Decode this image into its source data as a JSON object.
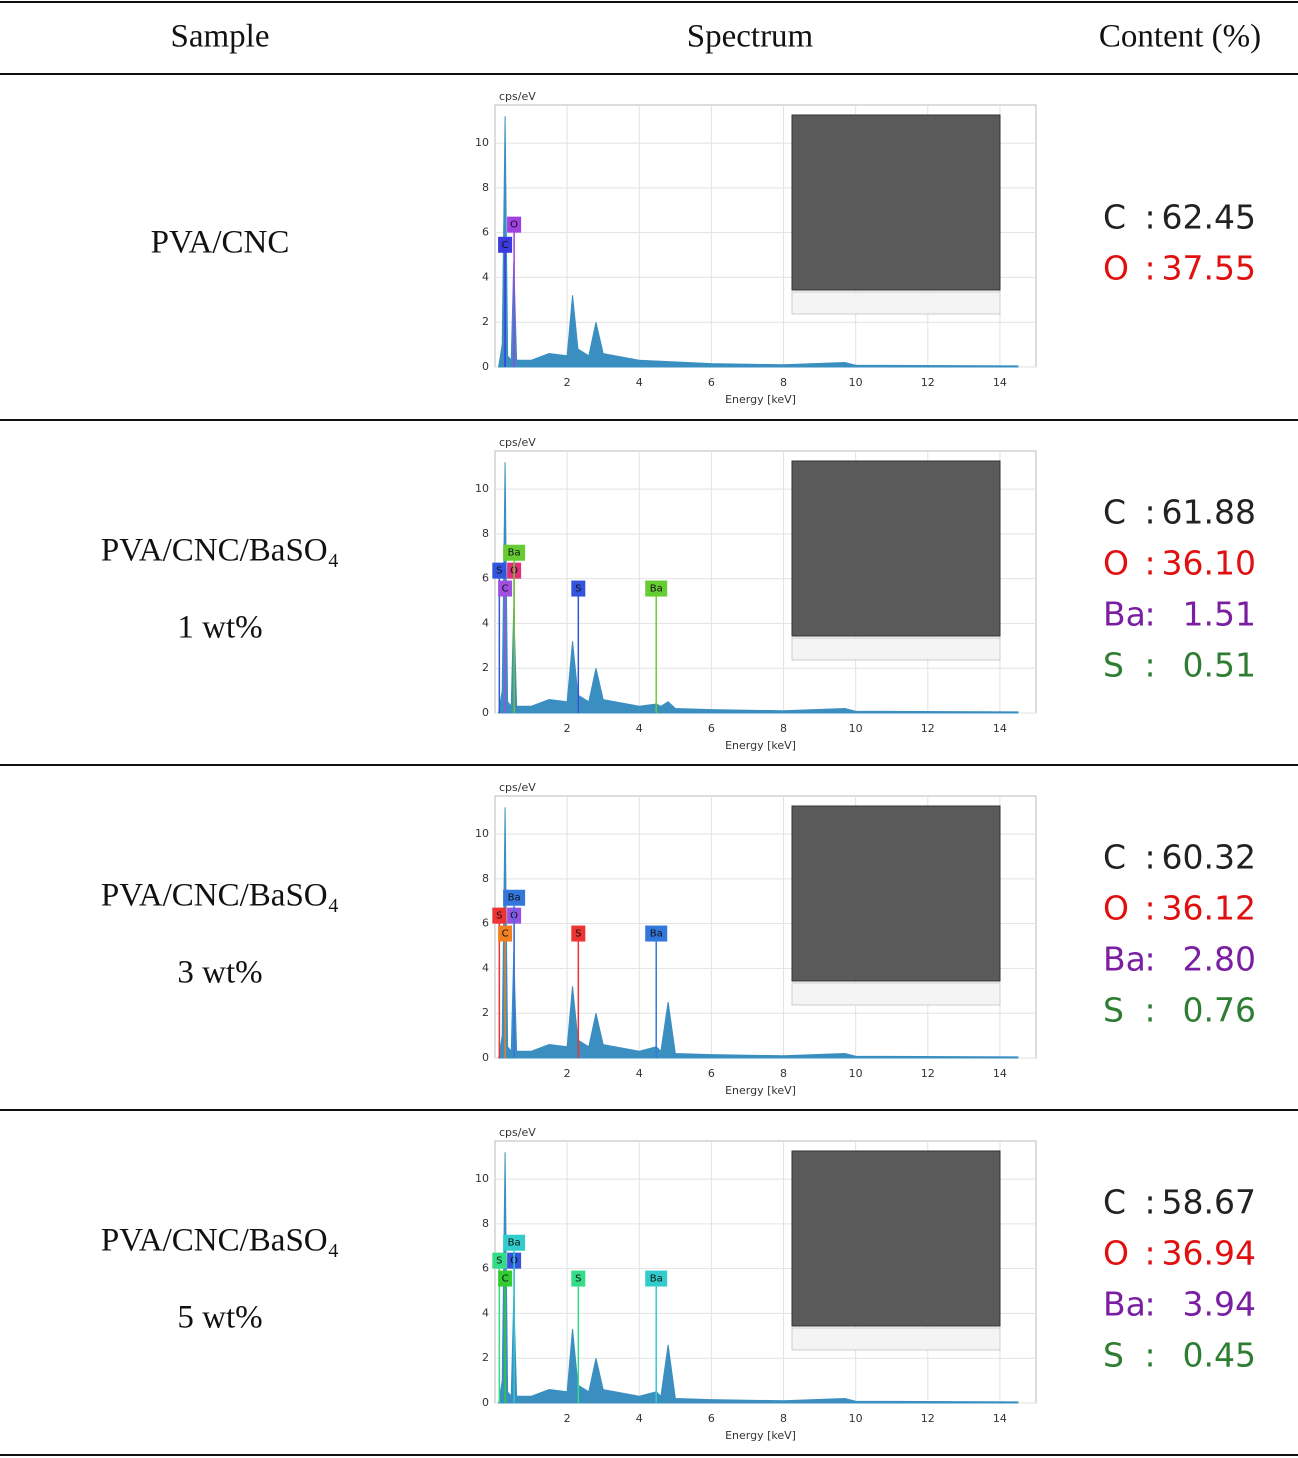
{
  "table": {
    "header": [
      "Sample",
      "Spectrum",
      "Content (%)"
    ],
    "rows": [
      {
        "sample": [
          "PVA/CNC"
        ],
        "spectrum": {
          "type": "area",
          "ylabel": "cps/eV",
          "xlabel": "Energy [keV]",
          "xlim": [
            0,
            15
          ],
          "ylim": [
            0,
            11.7
          ],
          "xticks": [
            2,
            4,
            6,
            8,
            10,
            12,
            14
          ],
          "yticks": [
            0,
            2,
            4,
            6,
            8,
            10
          ],
          "color": "#3a8fc0",
          "x": [
            0.1,
            0.2,
            0.28,
            0.35,
            0.45,
            0.52,
            0.6,
            1.0,
            1.5,
            2.0,
            2.15,
            2.3,
            2.6,
            2.8,
            3.0,
            4.0,
            6.0,
            8.0,
            9.7,
            10.0,
            14.5
          ],
          "values": [
            0,
            1,
            11.2,
            0.5,
            0.3,
            4.7,
            0.3,
            0.3,
            0.6,
            0.5,
            3.2,
            0.8,
            0.5,
            2.0,
            0.6,
            0.3,
            0.15,
            0.1,
            0.2,
            0.08,
            0.05
          ],
          "markers": [
            {
              "label": "C",
              "x": 0.28,
              "y": 5.1,
              "color": "#3a3ae0"
            },
            {
              "label": "O",
              "x": 0.53,
              "y": 6.0,
              "color": "#a040e0"
            }
          ]
        },
        "content": [
          {
            "element": "C",
            "sep": ":",
            "value": "62.45",
            "color": "#222222"
          },
          {
            "element": "O",
            "sep": ":",
            "value": "37.55",
            "color": "#e01010"
          }
        ]
      },
      {
        "sample": [
          "PVA/CNC/BaSO₄",
          "1 wt%"
        ],
        "spectrum": {
          "type": "area",
          "ylabel": "cps/eV",
          "xlabel": "Energy [keV]",
          "xlim": [
            0,
            15
          ],
          "ylim": [
            0,
            11.7
          ],
          "xticks": [
            2,
            4,
            6,
            8,
            10,
            12,
            14
          ],
          "yticks": [
            0,
            2,
            4,
            6,
            8,
            10
          ],
          "color": "#3a8fc0",
          "x": [
            0.1,
            0.2,
            0.28,
            0.35,
            0.45,
            0.52,
            0.6,
            1.0,
            1.5,
            2.0,
            2.15,
            2.3,
            2.6,
            2.8,
            3.0,
            4.0,
            4.47,
            4.6,
            4.8,
            5.0,
            6.0,
            8.0,
            9.7,
            10.0,
            14.5
          ],
          "values": [
            0,
            1,
            11.2,
            0.5,
            0.3,
            4.7,
            0.3,
            0.3,
            0.6,
            0.5,
            3.2,
            0.8,
            0.5,
            2.0,
            0.6,
            0.3,
            0.4,
            0.3,
            0.5,
            0.2,
            0.15,
            0.1,
            0.2,
            0.08,
            0.05
          ],
          "markers": [
            {
              "label": "S",
              "x": 0.12,
              "y": 6.0,
              "color": "#3355dd"
            },
            {
              "label": "C",
              "x": 0.28,
              "y": 5.2,
              "color": "#a050e0"
            },
            {
              "label": "O",
              "x": 0.53,
              "y": 6.0,
              "color": "#e0307a"
            },
            {
              "label": "Ba",
              "x": 0.53,
              "y": 6.8,
              "color": "#66cc33"
            },
            {
              "label": "S",
              "x": 2.31,
              "y": 5.2,
              "color": "#3355dd"
            },
            {
              "label": "Ba",
              "x": 4.47,
              "y": 5.2,
              "color": "#66cc33"
            }
          ]
        },
        "content": [
          {
            "element": "C",
            "sep": ":",
            "value": "61.88",
            "color": "#222222"
          },
          {
            "element": "O",
            "sep": ":",
            "value": "36.10",
            "color": "#e01010"
          },
          {
            "element": "Ba",
            "sep": ":",
            "value": "1.51",
            "color": "#7a1fa2"
          },
          {
            "element": "S",
            "sep": ":",
            "value": "0.51",
            "color": "#2e7d32"
          }
        ]
      },
      {
        "sample": [
          "PVA/CNC/BaSO₄",
          "3 wt%"
        ],
        "spectrum": {
          "type": "area",
          "ylabel": "cps/eV",
          "xlabel": "Energy [keV]",
          "xlim": [
            0,
            15
          ],
          "ylim": [
            0,
            11.7
          ],
          "xticks": [
            2,
            4,
            6,
            8,
            10,
            12,
            14
          ],
          "yticks": [
            0,
            2,
            4,
            6,
            8,
            10
          ],
          "color": "#3a8fc0",
          "x": [
            0.1,
            0.2,
            0.28,
            0.35,
            0.45,
            0.52,
            0.6,
            1.0,
            1.5,
            2.0,
            2.15,
            2.3,
            2.6,
            2.8,
            3.0,
            4.0,
            4.47,
            4.6,
            4.8,
            5.0,
            6.0,
            8.0,
            9.7,
            10.0,
            14.5
          ],
          "values": [
            0,
            1,
            11.2,
            0.5,
            0.3,
            4.7,
            0.3,
            0.3,
            0.6,
            0.5,
            3.2,
            0.8,
            0.5,
            2.0,
            0.6,
            0.3,
            0.5,
            0.3,
            2.5,
            0.2,
            0.15,
            0.1,
            0.2,
            0.08,
            0.05
          ],
          "markers": [
            {
              "label": "S",
              "x": 0.12,
              "y": 6.0,
              "color": "#ee3333"
            },
            {
              "label": "C",
              "x": 0.28,
              "y": 5.2,
              "color": "#f08020"
            },
            {
              "label": "O",
              "x": 0.53,
              "y": 6.0,
              "color": "#9a50e0"
            },
            {
              "label": "Ba",
              "x": 0.53,
              "y": 6.8,
              "color": "#3377dd"
            },
            {
              "label": "S",
              "x": 2.31,
              "y": 5.2,
              "color": "#ee3333"
            },
            {
              "label": "Ba",
              "x": 4.47,
              "y": 5.2,
              "color": "#3377dd"
            }
          ]
        },
        "content": [
          {
            "element": "C",
            "sep": ":",
            "value": "60.32",
            "color": "#222222"
          },
          {
            "element": "O",
            "sep": ":",
            "value": "36.12",
            "color": "#e01010"
          },
          {
            "element": "Ba",
            "sep": ":",
            "value": "2.80",
            "color": "#7a1fa2"
          },
          {
            "element": "S",
            "sep": ":",
            "value": "0.76",
            "color": "#2e7d32"
          }
        ]
      },
      {
        "sample": [
          "PVA/CNC/BaSO₄",
          "5 wt%"
        ],
        "spectrum": {
          "type": "area",
          "ylabel": "cps/eV",
          "xlabel": "Energy [keV]",
          "xlim": [
            0,
            15
          ],
          "ylim": [
            0,
            11.7
          ],
          "xticks": [
            2,
            4,
            6,
            8,
            10,
            12,
            14
          ],
          "yticks": [
            0,
            2,
            4,
            6,
            8,
            10
          ],
          "color": "#3a8fc0",
          "x": [
            0.1,
            0.2,
            0.28,
            0.35,
            0.45,
            0.52,
            0.6,
            1.0,
            1.5,
            2.0,
            2.15,
            2.3,
            2.6,
            2.8,
            3.0,
            4.0,
            4.47,
            4.6,
            4.8,
            5.0,
            6.0,
            8.0,
            9.7,
            10.0,
            14.5
          ],
          "values": [
            0,
            1,
            11.2,
            0.5,
            0.3,
            4.7,
            0.3,
            0.3,
            0.6,
            0.5,
            3.3,
            0.8,
            0.5,
            2.0,
            0.6,
            0.3,
            0.5,
            0.3,
            2.6,
            0.2,
            0.15,
            0.1,
            0.2,
            0.08,
            0.05
          ],
          "markers": [
            {
              "label": "S",
              "x": 0.12,
              "y": 6.0,
              "color": "#33dd88"
            },
            {
              "label": "C",
              "x": 0.28,
              "y": 5.2,
              "color": "#33cc33"
            },
            {
              "label": "O",
              "x": 0.53,
              "y": 6.0,
              "color": "#3355dd"
            },
            {
              "label": "Ba",
              "x": 0.53,
              "y": 6.8,
              "color": "#33cccc"
            },
            {
              "label": "S",
              "x": 2.31,
              "y": 5.2,
              "color": "#33dd88"
            },
            {
              "label": "Ba",
              "x": 4.47,
              "y": 5.2,
              "color": "#33cccc"
            }
          ]
        },
        "content": [
          {
            "element": "C",
            "sep": ":",
            "value": "58.67",
            "color": "#222222"
          },
          {
            "element": "O",
            "sep": ":",
            "value": "36.94",
            "color": "#e01010"
          },
          {
            "element": "Ba",
            "sep": ":",
            "value": "3.94",
            "color": "#7a1fa2"
          },
          {
            "element": "S",
            "sep": ":",
            "value": "0.45",
            "color": "#2e7d32"
          }
        ]
      }
    ]
  }
}
